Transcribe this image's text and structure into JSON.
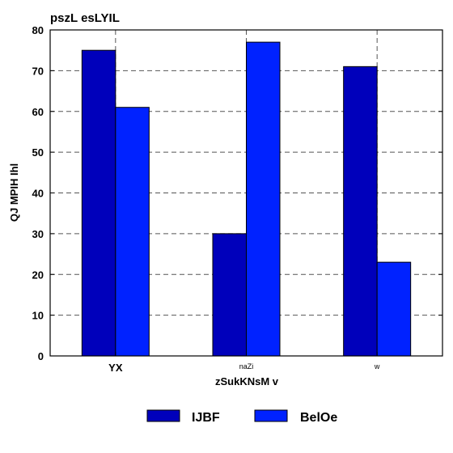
{
  "chart_data": {
    "type": "bar",
    "title": "pszL esLYIL",
    "xlabel": "zSukKNsM v",
    "ylabel": "QJ MPIH Ihl",
    "categories": [
      "YX",
      "naZi",
      "w"
    ],
    "series": [
      {
        "name": "IJBF",
        "values": [
          75,
          30,
          71
        ],
        "color": "#0000bb"
      },
      {
        "name": "BelOe",
        "values": [
          61,
          77,
          23
        ],
        "color": "#0022ff"
      }
    ],
    "ylim": [
      0,
      80
    ],
    "yticks": [
      0,
      10,
      20,
      30,
      40,
      50,
      60,
      70,
      80
    ],
    "grid": true,
    "legend_position": "bottom"
  }
}
